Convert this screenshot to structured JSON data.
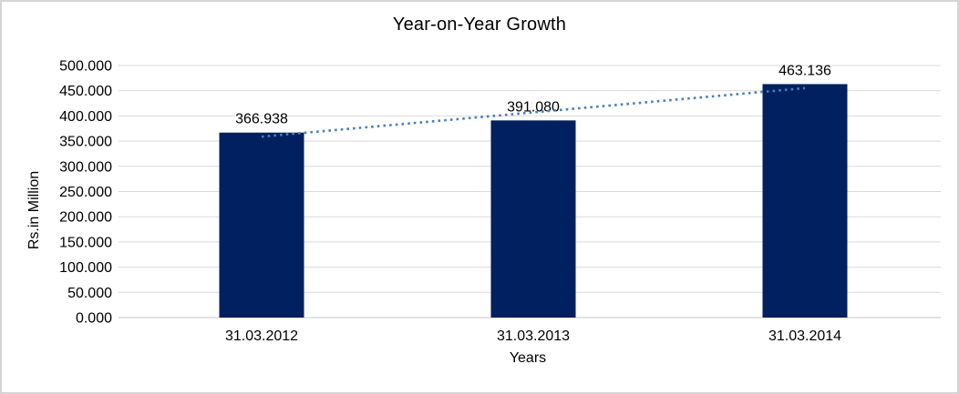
{
  "chart_data": {
    "type": "bar",
    "title": "Year-on-Year Growth",
    "xlabel": "Years",
    "ylabel": "Rs.in Million",
    "categories": [
      "31.03.2012",
      "31.03.2013",
      "31.03.2014"
    ],
    "values": [
      366.938,
      391.08,
      463.136
    ],
    "value_labels": [
      "366.938",
      "391.080",
      "463.136"
    ],
    "ylim": [
      0,
      500
    ],
    "ytick_step": 50,
    "ytick_labels": [
      "0.000",
      "50.000",
      "100.000",
      "150.000",
      "200.000",
      "250.000",
      "300.000",
      "350.000",
      "400.000",
      "450.000",
      "500.000"
    ],
    "grid": true,
    "legend": "none",
    "trendline": {
      "type": "linear",
      "style": "dotted"
    },
    "colors": {
      "bar": "#002060",
      "trendline": "#4a7ebb",
      "gridline": "#d9d9d9",
      "axis_line": "#c6c6c6",
      "text": "#000000",
      "frame_border": "#d5d5d5"
    }
  }
}
